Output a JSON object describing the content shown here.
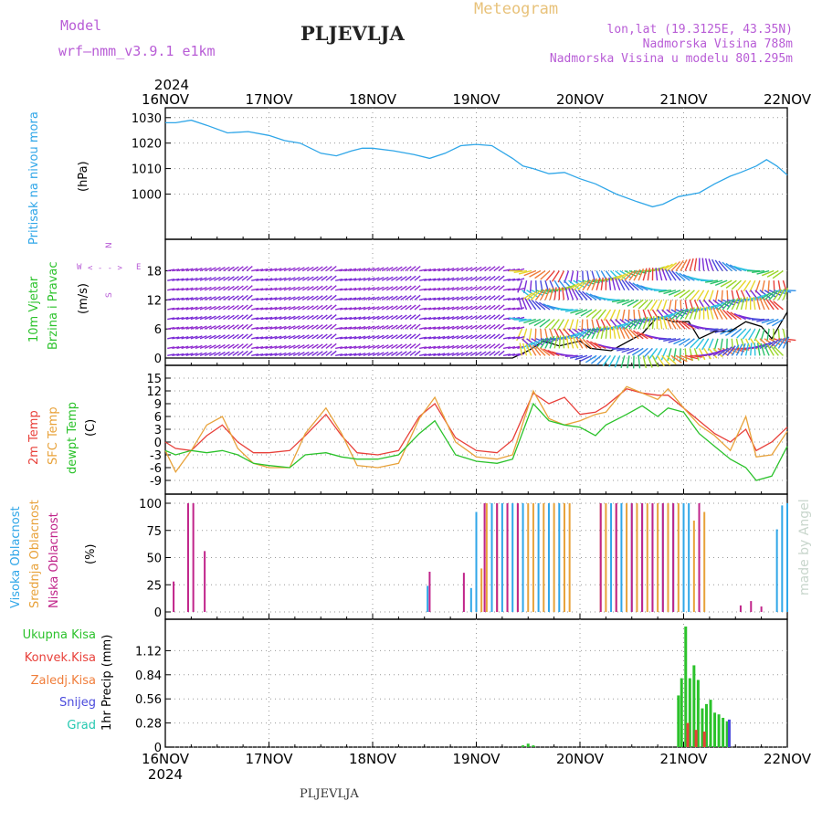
{
  "header": {
    "model_label": "Model",
    "model_name": "wrf—nmm_v3.9.1  e1km",
    "station": "PLJEVLJA",
    "meteogram_label": "Meteogram",
    "lonlat": "lon,lat (19.3125E, 43.35N)",
    "altitude": "Nadmorska Visina 788m",
    "model_altitude": "Nadmorska Visina u modelu 801.295m",
    "footer_station": "PLJEVLJA",
    "credit": "made by Angel",
    "year": "2024",
    "colors": {
      "model": "#b85cd6",
      "meteogram": "#e8c27a",
      "info": "#b85cd6",
      "credit": "#c8d6cc"
    }
  },
  "x_ticks": [
    "16NOV",
    "17NOV",
    "18NOV",
    "19NOV",
    "20NOV",
    "21NOV",
    "22NOV"
  ],
  "labels": {
    "pressure": {
      "main": "Pritisak na nivou mora",
      "unit": "(hPa)",
      "color": "#2fa6e8"
    },
    "wind": {
      "line1": "10m Vjetar",
      "line2": "Brzina i Pravac",
      "unit": "(m/s)",
      "color": "#2bc22b",
      "compass": {
        "n": "N",
        "w": "W",
        "e": "E",
        "s": "S",
        "glyph": "< - - >",
        "color": "#b85cd6"
      }
    },
    "temp": {
      "t2m": "2m Temp",
      "sfc": "SFC Temp",
      "dew": "dewpt Temp",
      "unit": "(C)",
      "colors": {
        "t2m": "#e8403a",
        "sfc": "#e8a23a",
        "dew": "#2bc22b"
      }
    },
    "cloud": {
      "high": "Visoka Oblacnost",
      "mid": "Srednja Oblacnost",
      "low": "Niska Oblacnost",
      "unit": "(%)",
      "colors": {
        "high": "#2fa6e8",
        "mid": "#e8a23a",
        "low": "#c0248a"
      }
    },
    "precip": {
      "total": "Ukupna Kisa",
      "conv": "Konvek.Kisa",
      "frz": "Zaledj.Kisa",
      "snow": "Snijeg",
      "hail": "Grad",
      "unit": "1hr Precip (mm)",
      "colors": {
        "total": "#2bc22b",
        "conv": "#e8403a",
        "frz": "#f07d3a",
        "snow": "#4a4adc",
        "hail": "#24c8b0"
      }
    }
  },
  "chart_data": [
    {
      "type": "line",
      "title": "Pritisak na nivou mora",
      "ylabel": "(hPa)",
      "ylim": [
        993,
        1031
      ],
      "yticks": [
        1000,
        1010,
        1020,
        1030
      ],
      "grid": true,
      "series": [
        {
          "name": "Pritisak na nivou mora",
          "color": "#2fa6e8",
          "x": [
            0,
            0.1,
            0.25,
            0.4,
            0.6,
            0.8,
            1.0,
            1.15,
            1.3,
            1.5,
            1.65,
            1.8,
            1.9,
            2.0,
            2.2,
            2.4,
            2.55,
            2.7,
            2.85,
            3.0,
            3.15,
            3.35,
            3.45,
            3.55,
            3.7,
            3.85,
            4.0,
            4.15,
            4.35,
            4.55,
            4.7,
            4.8,
            4.95,
            5.15,
            5.3,
            5.45,
            5.55,
            5.7,
            5.8,
            5.9,
            6.0
          ],
          "y": [
            1028,
            1028,
            1029,
            1027,
            1024,
            1024.5,
            1023,
            1021,
            1020,
            1016,
            1015,
            1017,
            1018,
            1018,
            1017,
            1015.5,
            1014,
            1016,
            1019,
            1019.5,
            1019,
            1014,
            1011,
            1010,
            1008,
            1008.5,
            1006,
            1004,
            1000,
            997,
            995,
            996,
            999,
            1000.5,
            1004,
            1007,
            1008.5,
            1011,
            1013.5,
            1011,
            1007.5
          ]
        }
      ]
    },
    {
      "type": "line",
      "title": "10m Vjetar Brzina i Pravac",
      "ylabel": "(m/s)",
      "ylim": [
        0,
        23
      ],
      "yticks": [
        0,
        6,
        12,
        18
      ],
      "grid": true,
      "series": [
        {
          "name": "10m Vjetar",
          "color": "#000000",
          "x": [
            0,
            3.35,
            3.5,
            3.65,
            3.8,
            4.0,
            4.1,
            4.3,
            4.6,
            4.75,
            4.9,
            5.05,
            5.15,
            5.3,
            5.45,
            5.6,
            5.75,
            5.85,
            6.0
          ],
          "y": [
            0,
            0,
            1.5,
            3.5,
            2.5,
            3.5,
            2,
            1.5,
            5,
            8.5,
            7.5,
            7.5,
            4,
            5.5,
            5.5,
            7.5,
            6.5,
            4,
            9.5
          ]
        }
      ]
    },
    {
      "type": "line",
      "title": "2m Temp / SFC Temp / dewpt Temp",
      "ylabel": "(C)",
      "ylim": [
        -10.5,
        15
      ],
      "yticks": [
        -9,
        -6,
        -3,
        0,
        3,
        6,
        9,
        12,
        15
      ],
      "grid": true,
      "x": [
        0,
        0.1,
        0.25,
        0.4,
        0.55,
        0.7,
        0.85,
        1.0,
        1.2,
        1.35,
        1.55,
        1.7,
        1.85,
        2.05,
        2.25,
        2.45,
        2.6,
        2.8,
        3.0,
        3.2,
        3.35,
        3.55,
        3.7,
        3.85,
        4.0,
        4.15,
        4.25,
        4.45,
        4.6,
        4.75,
        4.85,
        5.0,
        5.15,
        5.3,
        5.45,
        5.6,
        5.7,
        5.85,
        6.0
      ],
      "series": [
        {
          "name": "2m Temp",
          "color": "#e8403a",
          "values": [
            0,
            -1.5,
            -2,
            1.5,
            4,
            0,
            -2.5,
            -2.5,
            -2,
            1.5,
            6.5,
            1.5,
            -2.5,
            -3,
            -2,
            6,
            9,
            1,
            -2,
            -2.5,
            0.5,
            11.5,
            9,
            10.5,
            6.5,
            7,
            8.5,
            12.5,
            11.5,
            11,
            11,
            8,
            5,
            2,
            0,
            3,
            -2,
            0,
            3.5
          ]
        },
        {
          "name": "SFC Temp",
          "color": "#e8a23a",
          "values": [
            -2,
            -7,
            -2,
            4,
            6,
            -1.5,
            -5,
            -6,
            -6,
            2,
            8,
            2,
            -5.5,
            -6,
            -5,
            5.5,
            10.5,
            0,
            -3.5,
            -4,
            -3,
            12,
            5.5,
            4,
            5,
            6.5,
            7,
            13,
            11.5,
            10,
            12.5,
            8,
            4,
            1.5,
            -2,
            6,
            -3.5,
            -3,
            2.5
          ]
        },
        {
          "name": "dewpt Temp",
          "color": "#2bc22b",
          "values": [
            -2,
            -3,
            -2,
            -2.5,
            -2,
            -3,
            -5,
            -5.5,
            -6,
            -3,
            -2.5,
            -3.5,
            -4,
            -4,
            -3,
            2,
            5,
            -3,
            -4.5,
            -5,
            -4,
            9,
            5,
            4,
            3.5,
            1.5,
            4,
            6.5,
            8.5,
            6,
            8,
            7,
            2,
            -1,
            -4,
            -6,
            -9,
            -8,
            -1
          ]
        }
      ]
    },
    {
      "type": "bar",
      "title": "Visoka / Srednja / Niska Oblacnost",
      "ylabel": "(%)",
      "ylim": [
        0,
        100
      ],
      "yticks": [
        0,
        25,
        50,
        75,
        100
      ],
      "grid": true,
      "series": [
        {
          "name": "Visoka Oblacnost",
          "color": "#2fa6e8",
          "x": [
            2.53,
            2.95,
            3.0,
            3.15,
            3.25,
            3.35,
            3.45,
            3.6,
            3.7,
            3.8,
            4.3,
            4.4,
            4.5,
            4.6,
            4.7,
            4.8,
            4.9,
            5.0,
            5.05,
            5.9,
            5.95,
            6.0
          ],
          "values": [
            24,
            22,
            92,
            100,
            100,
            100,
            100,
            100,
            100,
            100,
            100,
            100,
            100,
            100,
            100,
            100,
            100,
            100,
            100,
            76,
            98,
            100
          ]
        },
        {
          "name": "Srednja Oblacnost",
          "color": "#e8a23a",
          "x": [
            3.05,
            3.1,
            3.2,
            3.3,
            3.4,
            3.5,
            3.55,
            3.65,
            3.75,
            3.85,
            3.9,
            4.2,
            4.25,
            4.35,
            4.45,
            4.55,
            4.65,
            4.75,
            4.85,
            4.95,
            5.1,
            5.2
          ],
          "values": [
            40,
            100,
            100,
            100,
            100,
            100,
            100,
            100,
            100,
            100,
            100,
            100,
            100,
            100,
            100,
            100,
            100,
            100,
            100,
            100,
            84,
            92
          ]
        },
        {
          "name": "Niska Oblacnost",
          "color": "#c0248a",
          "x": [
            0.08,
            0.22,
            0.27,
            0.38,
            2.55,
            2.88,
            3.08,
            3.2,
            3.3,
            3.4,
            4.2,
            4.35,
            4.5,
            4.6,
            4.7,
            4.8,
            4.9,
            5.15,
            5.55,
            5.65,
            5.75
          ],
          "values": [
            28,
            100,
            100,
            56,
            37,
            36,
            100,
            100,
            100,
            100,
            100,
            100,
            100,
            100,
            100,
            100,
            100,
            100,
            6,
            10,
            5
          ]
        }
      ]
    },
    {
      "type": "bar",
      "title": "1hr Precip",
      "ylabel": "1hr Precip (mm)",
      "ylim": [
        0,
        1.4
      ],
      "yticks": [
        0,
        0.28,
        0.56,
        0.84,
        1.12
      ],
      "grid": true,
      "series": [
        {
          "name": "Ukupna Kisa",
          "color": "#2bc22b",
          "x": [
            3.45,
            3.5,
            3.55,
            4.95,
            4.98,
            5.02,
            5.06,
            5.1,
            5.14,
            5.18,
            5.22,
            5.26,
            5.3,
            5.34,
            5.38,
            5.42
          ],
          "values": [
            0.02,
            0.04,
            0.02,
            0.6,
            0.8,
            1.4,
            0.8,
            0.95,
            0.78,
            0.45,
            0.5,
            0.55,
            0.4,
            0.38,
            0.34,
            0.3
          ]
        },
        {
          "name": "Konvek.Kisa",
          "color": "#e8403a",
          "x": [
            5.04,
            5.12,
            5.2
          ],
          "values": [
            0.28,
            0.2,
            0.18
          ]
        },
        {
          "name": "Snijeg",
          "color": "#4a4adc",
          "x": [
            5.44
          ],
          "values": [
            0.32
          ]
        }
      ]
    }
  ]
}
